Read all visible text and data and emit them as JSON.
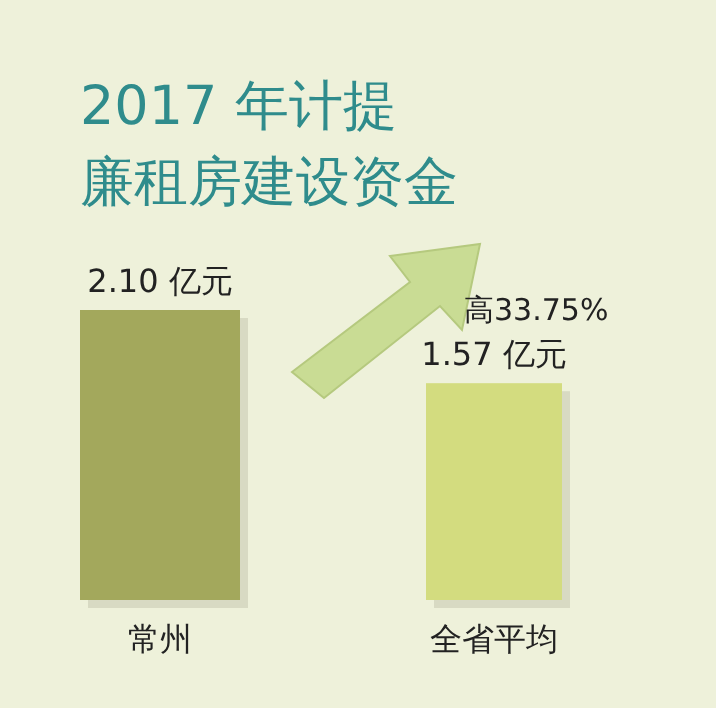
{
  "chart_data": {
    "type": "bar",
    "title": "2017 年计提",
    "subtitle": "廉租房建设资金",
    "categories": [
      "常州",
      "全省平均"
    ],
    "values": [
      2.1,
      1.57
    ],
    "colors": [
      "#a3a85c",
      "#d3dc7f"
    ],
    "value_labels": [
      "2.10 亿元",
      "1.57 亿元"
    ],
    "annotations": [
      "高33.75%"
    ]
  }
}
